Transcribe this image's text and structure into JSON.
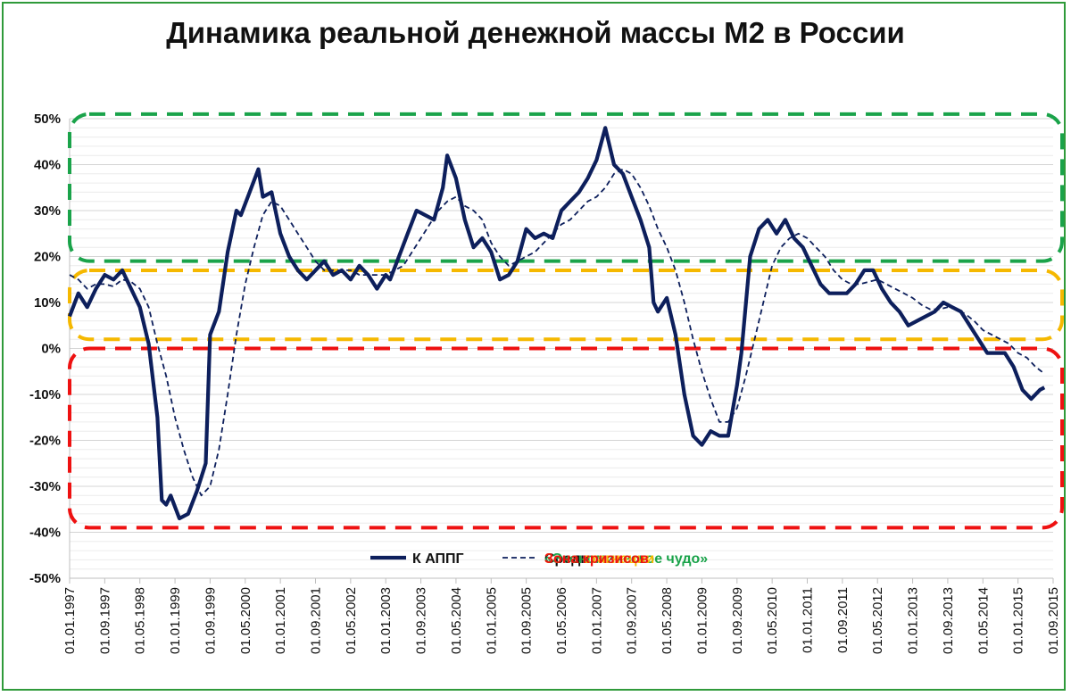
{
  "chart_data": {
    "type": "line",
    "title": "Динамика реальной денежной массы М2 в России",
    "ylim": [
      -50,
      50
    ],
    "y_ticks": [
      "50%",
      "40%",
      "30%",
      "20%",
      "10%",
      "0%",
      "-10%",
      "-20%",
      "-30%",
      "-40%",
      "-50%"
    ],
    "x_ticks": [
      "01.01.1997",
      "01.09.1997",
      "01.05.1998",
      "01.01.1999",
      "01.09.1999",
      "01.05.2000",
      "01.01.2001",
      "01.09.2001",
      "01.05.2002",
      "01.01.2003",
      "01.09.2003",
      "01.05.2004",
      "01.01.2005",
      "01.09.2005",
      "01.05.2006",
      "01.01.2007",
      "01.09.2007",
      "01.05.2008",
      "01.01.2009",
      "01.09.2009",
      "01.05.2010",
      "01.01.2011",
      "01.09.2011",
      "01.05.2012",
      "01.01.2013",
      "01.09.2013",
      "01.05.2014",
      "01.01.2015",
      "01.09.2015"
    ],
    "grid": true,
    "legend_position": "bottom",
    "series": [
      {
        "name": "К АППГ",
        "color": "#0d1f5c",
        "style": "solid",
        "points": [
          [
            "1997-01",
            7
          ],
          [
            "1997-03",
            12
          ],
          [
            "1997-05",
            9
          ],
          [
            "1997-07",
            13
          ],
          [
            "1997-09",
            16
          ],
          [
            "1997-11",
            15
          ],
          [
            "1998-01",
            17
          ],
          [
            "1998-03",
            13
          ],
          [
            "1998-05",
            9
          ],
          [
            "1998-07",
            1
          ],
          [
            "1998-09",
            -15
          ],
          [
            "1998-10",
            -33
          ],
          [
            "1998-11",
            -34
          ],
          [
            "1998-12",
            -32
          ],
          [
            "1999-02",
            -37
          ],
          [
            "1999-04",
            -36
          ],
          [
            "1999-06",
            -31
          ],
          [
            "1999-08",
            -25
          ],
          [
            "1999-09",
            3
          ],
          [
            "1999-11",
            8
          ],
          [
            "2000-01",
            21
          ],
          [
            "2000-03",
            30
          ],
          [
            "2000-04",
            29
          ],
          [
            "2000-06",
            34
          ],
          [
            "2000-08",
            39
          ],
          [
            "2000-09",
            33
          ],
          [
            "2000-11",
            34
          ],
          [
            "2001-01",
            25
          ],
          [
            "2001-03",
            20
          ],
          [
            "2001-05",
            17
          ],
          [
            "2001-07",
            15
          ],
          [
            "2001-09",
            17
          ],
          [
            "2001-11",
            19
          ],
          [
            "2002-01",
            16
          ],
          [
            "2002-03",
            17
          ],
          [
            "2002-05",
            15
          ],
          [
            "2002-07",
            18
          ],
          [
            "2002-09",
            16
          ],
          [
            "2002-11",
            13
          ],
          [
            "2003-01",
            16
          ],
          [
            "2003-02",
            15
          ],
          [
            "2003-04",
            20
          ],
          [
            "2003-06",
            25
          ],
          [
            "2003-08",
            30
          ],
          [
            "2003-10",
            29
          ],
          [
            "2003-12",
            28
          ],
          [
            "2004-02",
            35
          ],
          [
            "2004-03",
            42
          ],
          [
            "2004-05",
            37
          ],
          [
            "2004-07",
            28
          ],
          [
            "2004-09",
            22
          ],
          [
            "2004-11",
            24
          ],
          [
            "2005-01",
            21
          ],
          [
            "2005-03",
            15
          ],
          [
            "2005-05",
            16
          ],
          [
            "2005-07",
            19
          ],
          [
            "2005-09",
            26
          ],
          [
            "2005-11",
            24
          ],
          [
            "2006-01",
            25
          ],
          [
            "2006-03",
            24
          ],
          [
            "2006-05",
            30
          ],
          [
            "2006-07",
            32
          ],
          [
            "2006-09",
            34
          ],
          [
            "2006-11",
            37
          ],
          [
            "2007-01",
            41
          ],
          [
            "2007-03",
            48
          ],
          [
            "2007-05",
            40
          ],
          [
            "2007-07",
            38
          ],
          [
            "2007-09",
            33
          ],
          [
            "2007-11",
            28
          ],
          [
            "2008-01",
            22
          ],
          [
            "2008-02",
            10
          ],
          [
            "2008-03",
            8
          ],
          [
            "2008-05",
            11
          ],
          [
            "2008-07",
            3
          ],
          [
            "2008-09",
            -10
          ],
          [
            "2008-11",
            -19
          ],
          [
            "2009-01",
            -21
          ],
          [
            "2009-03",
            -18
          ],
          [
            "2009-05",
            -19
          ],
          [
            "2009-07",
            -19
          ],
          [
            "2009-09",
            -8
          ],
          [
            "2009-10",
            -1
          ],
          [
            "2009-12",
            20
          ],
          [
            "2010-02",
            26
          ],
          [
            "2010-04",
            28
          ],
          [
            "2010-06",
            25
          ],
          [
            "2010-08",
            28
          ],
          [
            "2010-10",
            24
          ],
          [
            "2010-12",
            22
          ],
          [
            "2011-02",
            18
          ],
          [
            "2011-04",
            14
          ],
          [
            "2011-06",
            12
          ],
          [
            "2011-08",
            12
          ],
          [
            "2011-10",
            12
          ],
          [
            "2011-12",
            14
          ],
          [
            "2012-02",
            17
          ],
          [
            "2012-04",
            17
          ],
          [
            "2012-06",
            13
          ],
          [
            "2012-08",
            10
          ],
          [
            "2012-10",
            8
          ],
          [
            "2012-12",
            5
          ],
          [
            "2013-02",
            6
          ],
          [
            "2013-04",
            7
          ],
          [
            "2013-06",
            8
          ],
          [
            "2013-08",
            10
          ],
          [
            "2013-10",
            9
          ],
          [
            "2013-12",
            8
          ],
          [
            "2014-02",
            5
          ],
          [
            "2014-04",
            2
          ],
          [
            "2014-06",
            -1
          ],
          [
            "2014-08",
            -1
          ],
          [
            "2014-10",
            -1
          ],
          [
            "2014-12",
            -4
          ],
          [
            "2015-02",
            -9
          ],
          [
            "2015-04",
            -11
          ],
          [
            "2015-06",
            -9
          ],
          [
            "2015-07",
            -8.5
          ]
        ]
      },
      {
        "name": "Средн",
        "color": "#0d1f5c",
        "style": "dashed",
        "points": [
          [
            "1997-01",
            16
          ],
          [
            "1997-03",
            15
          ],
          [
            "1997-05",
            13
          ],
          [
            "1997-07",
            14
          ],
          [
            "1997-09",
            14
          ],
          [
            "1997-11",
            13.5
          ],
          [
            "1998-01",
            15
          ],
          [
            "1998-03",
            14.5
          ],
          [
            "1998-05",
            13
          ],
          [
            "1998-07",
            9
          ],
          [
            "1998-09",
            1
          ],
          [
            "1998-11",
            -6
          ],
          [
            "1999-01",
            -15
          ],
          [
            "1999-03",
            -22
          ],
          [
            "1999-05",
            -28
          ],
          [
            "1999-07",
            -32
          ],
          [
            "1999-09",
            -30
          ],
          [
            "1999-11",
            -22
          ],
          [
            "2000-01",
            -10
          ],
          [
            "2000-03",
            3
          ],
          [
            "2000-05",
            14
          ],
          [
            "2000-07",
            22
          ],
          [
            "2000-09",
            29
          ],
          [
            "2000-11",
            32
          ],
          [
            "2001-01",
            31
          ],
          [
            "2001-03",
            28
          ],
          [
            "2001-05",
            25
          ],
          [
            "2001-07",
            22
          ],
          [
            "2001-09",
            19
          ],
          [
            "2001-11",
            17
          ],
          [
            "2002-01",
            17
          ],
          [
            "2002-03",
            17
          ],
          [
            "2002-05",
            17
          ],
          [
            "2002-07",
            16
          ],
          [
            "2002-09",
            16
          ],
          [
            "2002-11",
            16
          ],
          [
            "2003-01",
            16
          ],
          [
            "2003-03",
            17
          ],
          [
            "2003-05",
            18
          ],
          [
            "2003-07",
            21
          ],
          [
            "2003-09",
            24
          ],
          [
            "2003-11",
            27
          ],
          [
            "2004-01",
            30
          ],
          [
            "2004-03",
            32
          ],
          [
            "2004-05",
            33
          ],
          [
            "2004-07",
            31
          ],
          [
            "2004-09",
            30
          ],
          [
            "2004-11",
            28
          ],
          [
            "2005-01",
            23
          ],
          [
            "2005-03",
            20
          ],
          [
            "2005-05",
            18
          ],
          [
            "2005-07",
            19
          ],
          [
            "2005-09",
            20
          ],
          [
            "2005-11",
            21
          ],
          [
            "2006-01",
            23
          ],
          [
            "2006-03",
            25
          ],
          [
            "2006-05",
            27
          ],
          [
            "2006-07",
            28
          ],
          [
            "2006-09",
            30
          ],
          [
            "2006-11",
            32
          ],
          [
            "2007-01",
            33
          ],
          [
            "2007-03",
            35
          ],
          [
            "2007-05",
            38
          ],
          [
            "2007-07",
            39
          ],
          [
            "2007-09",
            38
          ],
          [
            "2007-11",
            35
          ],
          [
            "2008-01",
            31
          ],
          [
            "2008-03",
            26
          ],
          [
            "2008-05",
            22
          ],
          [
            "2008-07",
            17
          ],
          [
            "2008-09",
            10
          ],
          [
            "2008-11",
            2
          ],
          [
            "2009-01",
            -5
          ],
          [
            "2009-03",
            -11
          ],
          [
            "2009-05",
            -16
          ],
          [
            "2009-07",
            -16
          ],
          [
            "2009-09",
            -13
          ],
          [
            "2009-11",
            -6
          ],
          [
            "2010-01",
            2
          ],
          [
            "2010-03",
            10
          ],
          [
            "2010-05",
            18
          ],
          [
            "2010-07",
            22
          ],
          [
            "2010-09",
            24
          ],
          [
            "2010-11",
            25
          ],
          [
            "2011-01",
            24
          ],
          [
            "2011-03",
            22
          ],
          [
            "2011-05",
            20
          ],
          [
            "2011-07",
            17
          ],
          [
            "2011-09",
            15
          ],
          [
            "2011-11",
            14
          ],
          [
            "2012-01",
            14
          ],
          [
            "2012-03",
            14.5
          ],
          [
            "2012-05",
            15
          ],
          [
            "2012-07",
            14
          ],
          [
            "2012-09",
            13
          ],
          [
            "2012-11",
            12
          ],
          [
            "2013-01",
            11
          ],
          [
            "2013-03",
            9.5
          ],
          [
            "2013-05",
            8.5
          ],
          [
            "2013-07",
            8.5
          ],
          [
            "2013-09",
            9
          ],
          [
            "2013-11",
            8.5
          ],
          [
            "2014-01",
            7.5
          ],
          [
            "2014-03",
            6
          ],
          [
            "2014-05",
            4
          ],
          [
            "2014-07",
            3
          ],
          [
            "2014-09",
            2
          ],
          [
            "2014-11",
            1
          ],
          [
            "2015-01",
            -1
          ],
          [
            "2015-03",
            -2
          ],
          [
            "2015-05",
            -4
          ],
          [
            "2015-07",
            -5.5
          ]
        ]
      }
    ],
    "zones": [
      {
        "label": "«Экономическое чудо»",
        "color": "#1aa34a",
        "y_from": 19,
        "y_to": 51
      },
      {
        "label": "Зона стагнации",
        "color": "#f5b800",
        "y_from": 2,
        "y_to": 17
      },
      {
        "label": "Зона кризисов",
        "color": "#ee1111",
        "y_from": -39,
        "y_to": 0
      }
    ]
  }
}
